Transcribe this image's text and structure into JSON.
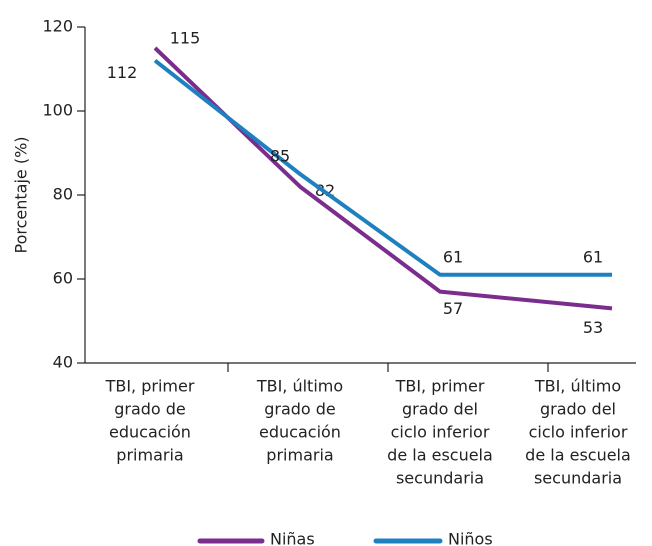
{
  "chart_data": {
    "type": "line",
    "y_label": "Porcentaje (%)",
    "categories": [
      [
        "TBI, primer",
        "grado de",
        "educación",
        "primaria"
      ],
      [
        "TBI, último",
        "grado de",
        "educación",
        "primaria"
      ],
      [
        "TBI, primer",
        "grado del",
        "ciclo inferior",
        "de la escuela",
        "secundaria"
      ],
      [
        "TBI, último",
        "grado del",
        "ciclo inferior",
        "de la escuela",
        "secundaria"
      ]
    ],
    "series": [
      {
        "name": "Niñas",
        "color": "#7b2d8e",
        "values": [
          115,
          82,
          57,
          53
        ]
      },
      {
        "name": "Niños",
        "color": "#1f80c0",
        "values": [
          112,
          85,
          61,
          61
        ]
      }
    ],
    "ylim": [
      40,
      120
    ],
    "yticks": [
      40,
      60,
      80,
      100,
      120
    ]
  }
}
